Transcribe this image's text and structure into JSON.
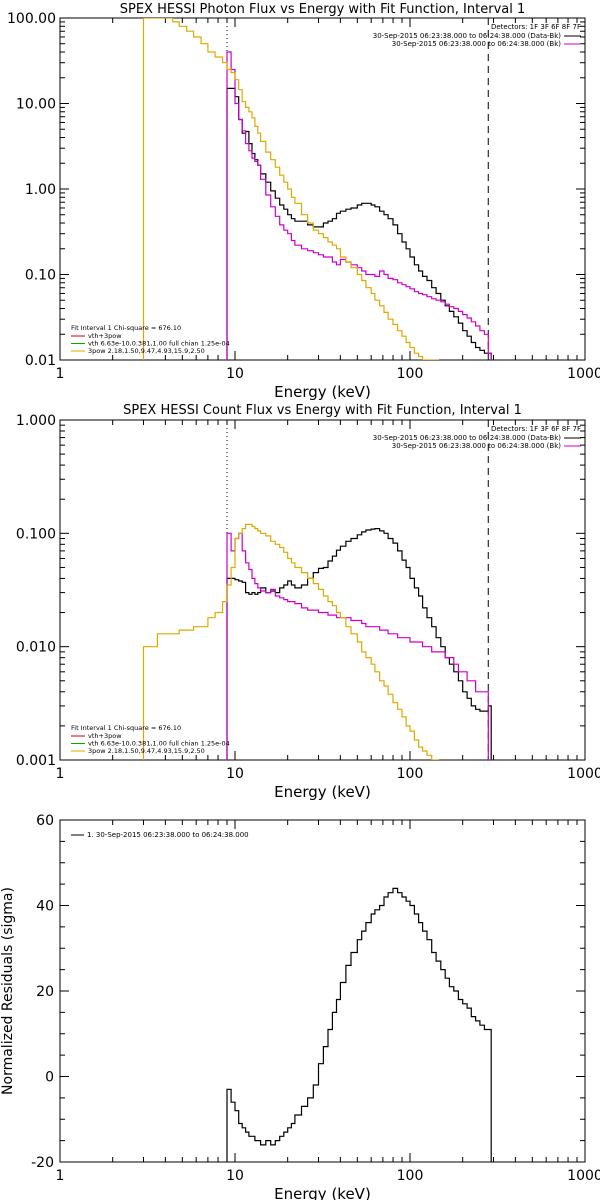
{
  "chart_data": [
    {
      "type": "line",
      "title": "SPEX HESSI Photon Flux vs Energy with Fit Function, Interval 1",
      "xlabel": "Energy (keV)",
      "ylabel": "",
      "xscale": "log",
      "yscale": "log",
      "xlim": [
        1,
        1000
      ],
      "ylim": [
        0.01,
        100
      ],
      "xticks": [
        "1",
        "10",
        "100",
        "1000"
      ],
      "yticks": [
        "0.01",
        "0.10",
        "1.00",
        "10.00",
        "100.00"
      ],
      "legend_top_right": {
        "header": "Detectors: 1F 3F 6F 8F 7F",
        "lines": [
          {
            "text": "30-Sep-2015 06:23:38.000 to 06:24:38.000 (Data-Bk)",
            "color": "#000000"
          },
          {
            "text": "30-Sep-2015 06:23:38.000 to 06:24:38.000 (Bk)",
            "color": "#cc00cc"
          }
        ]
      },
      "legend_bottom_left": {
        "header": "Fit Interval 1   Chi-square = 676.10",
        "lines": [
          {
            "text": "vth+3pow",
            "color": "#cc0000"
          },
          {
            "text": "vth 6.63e-10,0.381,1.00  full chian 1.25e-04",
            "color": "#00aa00"
          },
          {
            "text": "3pow 2.18,1.50,9.47,4.93,15.9,2.50",
            "color": "#ddaa00"
          }
        ]
      },
      "vlines": [
        {
          "x": 9.0,
          "style": "dotted",
          "color": "#000000"
        },
        {
          "x": 280,
          "style": "dashed",
          "color": "#000000"
        }
      ],
      "series": [
        {
          "color": "#000000",
          "x": [
            9,
            9.5,
            10,
            10.5,
            11,
            11.5,
            12,
            12.5,
            13,
            13.5,
            14,
            15,
            16,
            17,
            18,
            19,
            20,
            21,
            22,
            24,
            26,
            28,
            30,
            32,
            34,
            36,
            38,
            40,
            43,
            46,
            50,
            53,
            56,
            60,
            63,
            67,
            71,
            75,
            80,
            85,
            90,
            95,
            100,
            106,
            112,
            118,
            125,
            133,
            141,
            150,
            159,
            168,
            178,
            189,
            200,
            212,
            224,
            237,
            251,
            266,
            280
          ],
          "y": [
            15,
            15,
            12,
            6.5,
            4.5,
            4.7,
            3.4,
            2.6,
            2.2,
            1.9,
            1.5,
            1.2,
            0.95,
            0.78,
            0.65,
            0.58,
            0.5,
            0.45,
            0.42,
            0.42,
            0.38,
            0.36,
            0.36,
            0.4,
            0.42,
            0.45,
            0.52,
            0.55,
            0.58,
            0.6,
            0.65,
            0.68,
            0.68,
            0.65,
            0.62,
            0.55,
            0.5,
            0.45,
            0.38,
            0.3,
            0.24,
            0.2,
            0.16,
            0.13,
            0.11,
            0.095,
            0.085,
            0.07,
            0.06,
            0.05,
            0.043,
            0.037,
            0.032,
            0.027,
            0.022,
            0.019,
            0.016,
            0.014,
            0.013,
            0.012,
            0.012
          ]
        },
        {
          "color": "#cc00cc",
          "x": [
            9,
            9.5,
            10,
            10.5,
            11,
            11.5,
            12,
            12.5,
            13,
            13.5,
            14,
            15,
            16,
            17,
            18,
            19,
            20,
            21,
            22,
            24,
            26,
            28,
            30,
            32,
            34,
            36,
            38,
            40,
            43,
            46,
            50,
            53,
            56,
            60,
            63,
            67,
            71,
            75,
            80,
            85,
            90,
            95,
            100,
            106,
            112,
            118,
            125,
            133,
            141,
            150,
            159,
            168,
            178,
            189,
            200,
            212,
            224,
            237,
            251,
            266,
            280
          ],
          "y": [
            40,
            25,
            10,
            6.5,
            4.8,
            3.4,
            2.8,
            2.3,
            2.1,
            1.9,
            1.3,
            0.85,
            0.62,
            0.48,
            0.38,
            0.33,
            0.3,
            0.25,
            0.22,
            0.2,
            0.19,
            0.18,
            0.17,
            0.16,
            0.16,
            0.14,
            0.13,
            0.15,
            0.14,
            0.13,
            0.12,
            0.11,
            0.1,
            0.1,
            0.095,
            0.11,
            0.1,
            0.09,
            0.087,
            0.08,
            0.076,
            0.072,
            0.068,
            0.063,
            0.06,
            0.058,
            0.055,
            0.052,
            0.05,
            0.048,
            0.045,
            0.042,
            0.04,
            0.037,
            0.034,
            0.031,
            0.028,
            0.025,
            0.022,
            0.02,
            0.012
          ]
        },
        {
          "color": "#ddaa00",
          "x": [
            3,
            3.3,
            3.6,
            4,
            4.4,
            4.8,
            5.3,
            5.8,
            6.4,
            7,
            7.7,
            8.5,
            9,
            9.5,
            10,
            10.5,
            11,
            11.5,
            12,
            12.5,
            13,
            13.5,
            14,
            15,
            16,
            17,
            18,
            19,
            20,
            21,
            22,
            24,
            26,
            28,
            30,
            32,
            34,
            36,
            38,
            40,
            43,
            46,
            50,
            53,
            56,
            60,
            63,
            67,
            71,
            75,
            80,
            85,
            90,
            95,
            100,
            106,
            112,
            118,
            125,
            133,
            141
          ],
          "y": [
            100,
            100,
            100,
            100,
            90,
            80,
            70,
            60,
            50,
            40,
            35,
            30,
            25,
            23,
            19,
            14.5,
            10.5,
            9,
            8,
            6.8,
            5.4,
            4.5,
            3.6,
            2.7,
            2.2,
            1.8,
            1.45,
            1.2,
            1.0,
            0.8,
            0.68,
            0.5,
            0.4,
            0.33,
            0.3,
            0.27,
            0.24,
            0.22,
            0.2,
            0.16,
            0.14,
            0.12,
            0.1,
            0.085,
            0.07,
            0.06,
            0.05,
            0.043,
            0.036,
            0.03,
            0.026,
            0.022,
            0.019,
            0.016,
            0.014,
            0.012,
            0.011,
            0.01,
            0.01,
            0.01,
            0.01
          ]
        }
      ]
    },
    {
      "type": "line",
      "title": "SPEX HESSI Count Flux vs Energy with Fit Function, Interval 1",
      "xlabel": "Energy (keV)",
      "ylabel": "",
      "xscale": "log",
      "yscale": "log",
      "xlim": [
        1,
        1000
      ],
      "ylim": [
        0.001,
        1
      ],
      "xticks": [
        "1",
        "10",
        "100",
        "1000"
      ],
      "yticks": [
        "0.001",
        "0.010",
        "0.100",
        "1.000"
      ],
      "legend_top_right": {
        "header": "Detectors: 1F 3F 6F 8F 7F",
        "lines": [
          {
            "text": "30-Sep-2015 06:23:38.000 to 06:24:38.000 (Data-Bk)",
            "color": "#000000"
          },
          {
            "text": "30-Sep-2015 06:23:38.000 to 06:24:38.000 (Bk)",
            "color": "#cc00cc"
          }
        ]
      },
      "legend_bottom_left": {
        "header": "Fit Interval 1   Chi-square = 676.10",
        "lines": [
          {
            "text": "vth+3pow",
            "color": "#cc0000"
          },
          {
            "text": "vth 6.63e-10,0.381,1.00  full chian 1.25e-04",
            "color": "#00aa00"
          },
          {
            "text": "3pow 2.18,1.50,9.47,4.93,15.9,2.50",
            "color": "#ddaa00"
          }
        ]
      },
      "vlines": [
        {
          "x": 9.0,
          "style": "dotted",
          "color": "#000000"
        },
        {
          "x": 280,
          "style": "dashed",
          "color": "#000000"
        }
      ],
      "series": [
        {
          "color": "#000000",
          "x": [
            9,
            9.5,
            10,
            10.5,
            11,
            11.5,
            12,
            12.5,
            13,
            13.5,
            14,
            15,
            16,
            17,
            18,
            19,
            20,
            21,
            22,
            24,
            26,
            28,
            30,
            32,
            34,
            36,
            38,
            40,
            43,
            46,
            50,
            53,
            56,
            60,
            63,
            67,
            71,
            75,
            80,
            85,
            90,
            95,
            100,
            106,
            112,
            118,
            125,
            133,
            141,
            150,
            159,
            168,
            178,
            189,
            200,
            212,
            224,
            237,
            251,
            266,
            280
          ],
          "y": [
            0.04,
            0.04,
            0.039,
            0.038,
            0.037,
            0.03,
            0.029,
            0.03,
            0.029,
            0.03,
            0.033,
            0.03,
            0.031,
            0.03,
            0.033,
            0.035,
            0.038,
            0.035,
            0.033,
            0.035,
            0.04,
            0.045,
            0.049,
            0.05,
            0.057,
            0.063,
            0.071,
            0.077,
            0.085,
            0.09,
            0.097,
            0.103,
            0.107,
            0.109,
            0.11,
            0.105,
            0.1,
            0.09,
            0.082,
            0.07,
            0.058,
            0.05,
            0.04,
            0.033,
            0.028,
            0.022,
            0.018,
            0.015,
            0.012,
            0.01,
            0.008,
            0.007,
            0.006,
            0.005,
            0.004,
            0.0035,
            0.003,
            0.0028,
            0.0027,
            0.0027,
            0.003
          ]
        },
        {
          "color": "#cc00cc",
          "x": [
            9,
            9.5,
            10,
            10.5,
            11,
            11.5,
            12,
            12.5,
            13,
            13.5,
            14,
            15,
            16,
            17,
            18,
            19,
            20,
            21,
            22,
            24,
            26,
            28,
            30,
            32,
            34,
            36,
            38,
            40,
            43,
            46,
            50,
            53,
            56,
            60,
            63,
            67,
            71,
            75,
            80,
            85,
            90,
            95,
            100,
            106,
            112,
            118,
            125,
            133,
            141,
            150,
            159,
            168,
            178,
            189,
            200,
            212,
            224,
            237,
            251,
            266,
            280
          ],
          "y": [
            0.1,
            0.07,
            0.09,
            0.1,
            0.07,
            0.055,
            0.048,
            0.04,
            0.036,
            0.033,
            0.031,
            0.03,
            0.032,
            0.028,
            0.027,
            0.026,
            0.025,
            0.025,
            0.024,
            0.022,
            0.021,
            0.021,
            0.02,
            0.02,
            0.019,
            0.019,
            0.018,
            0.018,
            0.018,
            0.017,
            0.017,
            0.016,
            0.015,
            0.015,
            0.015,
            0.014,
            0.014,
            0.013,
            0.013,
            0.012,
            0.012,
            0.012,
            0.011,
            0.011,
            0.011,
            0.01,
            0.01,
            0.009,
            0.009,
            0.009,
            0.008,
            0.008,
            0.007,
            0.006,
            0.006,
            0.005,
            0.005,
            0.004,
            0.004,
            0.004,
            0.001
          ]
        },
        {
          "color": "#ddaa00",
          "x": [
            3,
            3.3,
            3.6,
            4,
            4.4,
            4.8,
            5.3,
            5.8,
            6.4,
            7,
            7.7,
            8.5,
            9,
            9.5,
            10,
            10.5,
            11,
            11.5,
            12,
            12.5,
            13,
            13.5,
            14,
            15,
            16,
            17,
            18,
            19,
            20,
            21,
            22,
            24,
            26,
            28,
            30,
            32,
            34,
            36,
            38,
            40,
            43,
            46,
            50,
            53,
            56,
            60,
            63,
            67,
            71,
            75,
            80,
            85,
            90,
            95,
            100,
            106,
            112,
            118,
            125,
            133,
            141
          ],
          "y": [
            0.01,
            0.01,
            0.013,
            0.013,
            0.013,
            0.014,
            0.014,
            0.015,
            0.015,
            0.018,
            0.02,
            0.025,
            0.035,
            0.05,
            0.09,
            0.1,
            0.11,
            0.12,
            0.12,
            0.115,
            0.11,
            0.105,
            0.1,
            0.095,
            0.085,
            0.08,
            0.075,
            0.068,
            0.06,
            0.055,
            0.05,
            0.045,
            0.04,
            0.036,
            0.032,
            0.028,
            0.025,
            0.023,
            0.02,
            0.018,
            0.015,
            0.013,
            0.011,
            0.009,
            0.008,
            0.007,
            0.006,
            0.005,
            0.0045,
            0.0038,
            0.0032,
            0.0028,
            0.0024,
            0.002,
            0.0018,
            0.0015,
            0.0013,
            0.0012,
            0.0011,
            0.001,
            0.001
          ]
        }
      ]
    },
    {
      "type": "line",
      "title": "",
      "xlabel": "Energy (keV)",
      "ylabel": "Normalized Residuals (sigma)",
      "xscale": "log",
      "yscale": "linear",
      "xlim": [
        1,
        1000
      ],
      "ylim": [
        -20,
        60
      ],
      "xticks": [
        "1",
        "10",
        "100",
        "1000"
      ],
      "yticks": [
        "-20",
        "0",
        "20",
        "40",
        "60"
      ],
      "legend_top_left": {
        "lines": [
          {
            "text": "1. 30-Sep-2015 06:23:38.000 to 06:24:38.000",
            "color": "#000000"
          }
        ]
      },
      "series": [
        {
          "color": "#000000",
          "x": [
            9,
            9.5,
            10,
            10.5,
            11,
            11.5,
            12,
            12.5,
            13,
            13.5,
            14,
            15,
            16,
            17,
            18,
            19,
            20,
            21,
            22,
            24,
            26,
            28,
            30,
            32,
            34,
            36,
            38,
            40,
            43,
            46,
            50,
            53,
            56,
            60,
            63,
            67,
            71,
            75,
            80,
            85,
            90,
            95,
            100,
            106,
            112,
            118,
            125,
            133,
            141,
            150,
            159,
            168,
            178,
            189,
            200,
            212,
            224,
            237,
            251,
            266,
            280
          ],
          "y": [
            -3,
            -6,
            -8,
            -11,
            -12,
            -13,
            -14,
            -14,
            -15,
            -15,
            -16,
            -15,
            -16,
            -15,
            -14,
            -13,
            -12,
            -11,
            -9,
            -7,
            -5,
            -2,
            3,
            7,
            11,
            15,
            18,
            22,
            26,
            29,
            32,
            34,
            36,
            38,
            39,
            40,
            42,
            43,
            44,
            43,
            42,
            41,
            40,
            38,
            36,
            34,
            32,
            29,
            27,
            25,
            23,
            21,
            20,
            18,
            17,
            16,
            14,
            13,
            12,
            11,
            11
          ]
        }
      ]
    }
  ]
}
